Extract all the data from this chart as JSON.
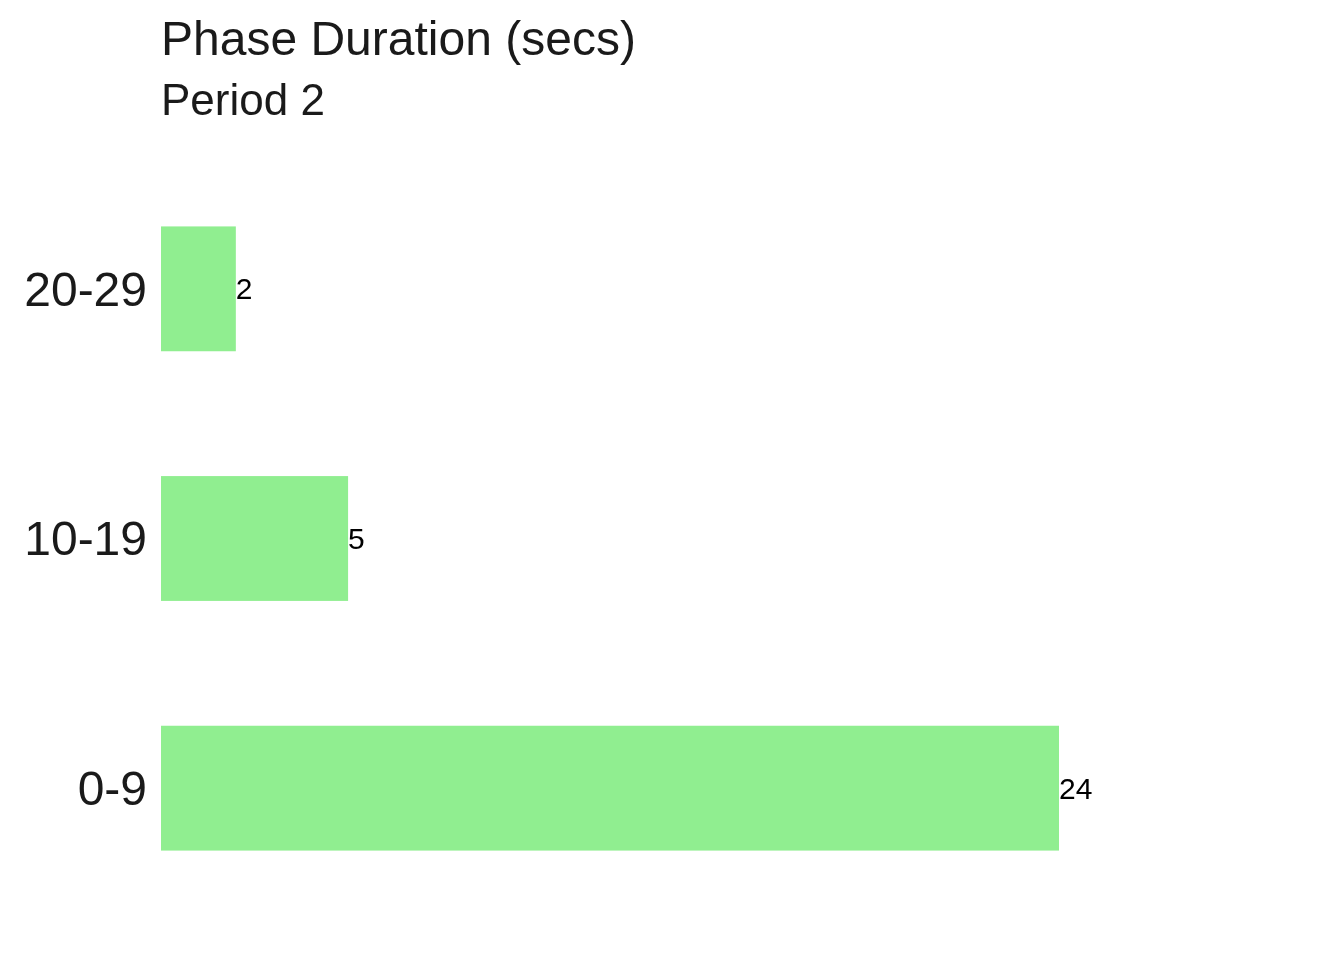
{
  "chart_data": {
    "type": "bar",
    "orientation": "horizontal",
    "title": "Phase Duration (secs)",
    "subtitle": "Period 2",
    "categories": [
      "20-29",
      "10-19",
      "0-9"
    ],
    "values": [
      2,
      5,
      24
    ],
    "color": "#90ee90",
    "data_labels": true,
    "tick_labels": "y"
  }
}
